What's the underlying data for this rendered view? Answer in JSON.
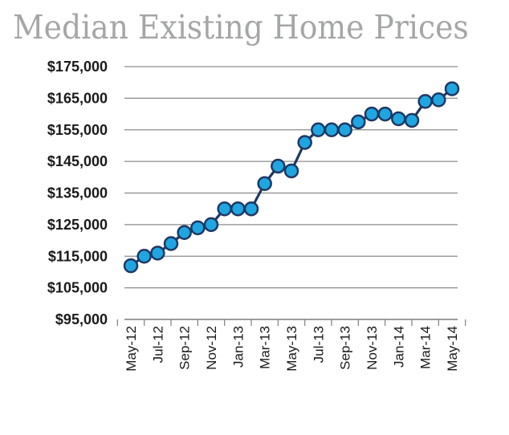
{
  "chart_data": {
    "type": "line",
    "title": "Median Existing Home Prices",
    "xlabel": "",
    "ylabel": "",
    "ylim": [
      95000,
      175000
    ],
    "yticks": [
      95000,
      105000,
      115000,
      125000,
      135000,
      145000,
      155000,
      165000,
      175000
    ],
    "ytick_labels": [
      "$95,000",
      "$105,000",
      "$115,000",
      "$125,000",
      "$135,000",
      "$145,000",
      "$155,000",
      "$165,000",
      "$175,000"
    ],
    "x": [
      "May-12",
      "Jun-12",
      "Jul-12",
      "Aug-12",
      "Sep-12",
      "Oct-12",
      "Nov-12",
      "Dec-12",
      "Jan-13",
      "Feb-13",
      "Mar-13",
      "Apr-13",
      "May-13",
      "Jun-13",
      "Jul-13",
      "Aug-13",
      "Sep-13",
      "Oct-13",
      "Nov-13",
      "Dec-13",
      "Jan-14",
      "Feb-14",
      "Mar-14",
      "Apr-14",
      "May-14"
    ],
    "xtick_labels": [
      "May-12",
      "Jul-12",
      "Sep-12",
      "Nov-12",
      "Jan-13",
      "Mar-13",
      "May-13",
      "Jul-13",
      "Sep-13",
      "Nov-13",
      "Jan-14",
      "Mar-14",
      "May-14"
    ],
    "series": [
      {
        "values": [
          112000,
          115000,
          116000,
          119000,
          122500,
          124000,
          125000,
          130000,
          130000,
          130000,
          138000,
          143500,
          142000,
          151000,
          155000,
          155000,
          155000,
          157500,
          160000,
          160000,
          158500,
          158000,
          164000,
          164500,
          168000
        ]
      }
    ],
    "grid": true,
    "legend": "none",
    "colors": {
      "line": "#1f3864",
      "marker_fill": "#1fa6e0",
      "marker_edge": "#1f3864",
      "grid": "#8c8c8c",
      "title": "#a4a6a8"
    }
  }
}
